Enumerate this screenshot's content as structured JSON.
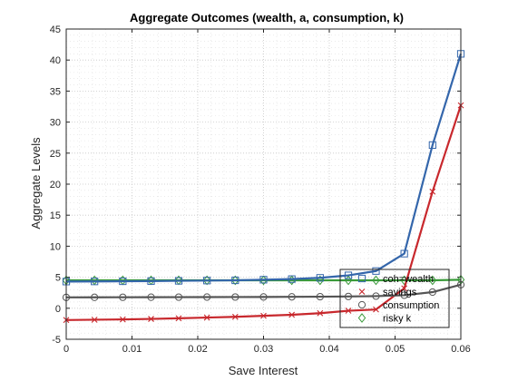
{
  "chart_data": {
    "type": "line",
    "title": "Aggregate Outcomes (wealth, a, consumption, k)",
    "xlabel": "Save Interest",
    "ylabel": "Aggregate Levels",
    "xlim": [
      0,
      0.06
    ],
    "ylim": [
      -5,
      45
    ],
    "xticks": [
      "0",
      "0.01",
      "0.02",
      "0.03",
      "0.04",
      "0.05",
      "0.06"
    ],
    "yticks": [
      "-5",
      "0",
      "5",
      "10",
      "15",
      "20",
      "25",
      "30",
      "35",
      "40",
      "45"
    ],
    "grid": "on (major and minor, dotted)",
    "legend_position": "bottom-right",
    "x": [
      0,
      0.0043,
      0.0086,
      0.0129,
      0.0171,
      0.0214,
      0.0257,
      0.03,
      0.0343,
      0.0386,
      0.0429,
      0.0471,
      0.0514,
      0.0557,
      0.06
    ],
    "series": [
      {
        "name": "coh=wealth",
        "color": "#3466ab",
        "marker": "square",
        "values": [
          4.3,
          4.32,
          4.35,
          4.38,
          4.42,
          4.46,
          4.5,
          4.6,
          4.7,
          4.9,
          5.3,
          6.0,
          8.8,
          26.3,
          41.0
        ]
      },
      {
        "name": "savings",
        "color": "#c8282d",
        "marker": "x",
        "values": [
          -1.9,
          -1.85,
          -1.8,
          -1.72,
          -1.62,
          -1.5,
          -1.38,
          -1.22,
          -1.05,
          -0.8,
          -0.4,
          -0.2,
          3.2,
          18.8,
          32.7
        ]
      },
      {
        "name": "consumption",
        "color": "#555555",
        "marker": "circle",
        "values": [
          1.75,
          1.76,
          1.77,
          1.78,
          1.79,
          1.8,
          1.81,
          1.82,
          1.84,
          1.86,
          1.9,
          1.95,
          2.1,
          2.6,
          3.8
        ]
      },
      {
        "name": "risky k",
        "color": "#3a9a3a",
        "marker": "diamond",
        "values": [
          4.5,
          4.5,
          4.5,
          4.5,
          4.5,
          4.5,
          4.5,
          4.5,
          4.5,
          4.5,
          4.5,
          4.5,
          4.5,
          4.5,
          4.6
        ]
      }
    ]
  }
}
